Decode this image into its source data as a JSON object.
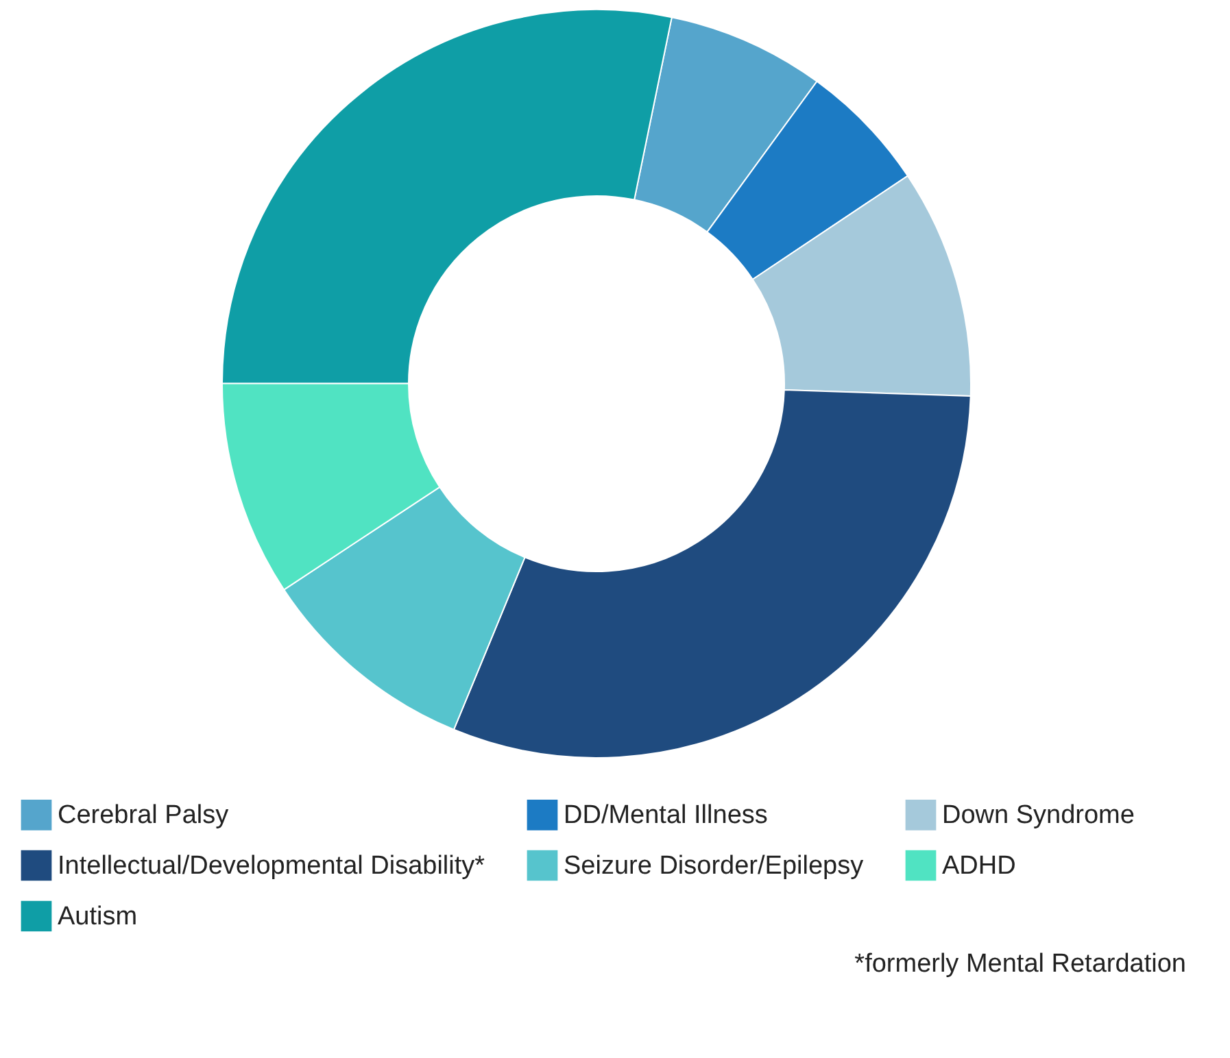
{
  "chart_data": {
    "type": "donut",
    "categories": [
      "Cerebral Palsy",
      "DD/Mental Illness",
      "Down Syndrome",
      "Intellectual/Developmental Disability*",
      "Seizure Disorder/Epilepsy",
      "ADHD",
      "Autism"
    ],
    "values": [
      6.8,
      5.6,
      9.9,
      30.7,
      9.5,
      9.3,
      28.2
    ],
    "colors": [
      "#55a5cc",
      "#1c7bc4",
      "#a5c9db",
      "#1f4b7f",
      "#56c4cd",
      "#50e3c2",
      "#0f9ea6"
    ],
    "legend": "bottom",
    "annotations": [
      "*formerly Mental Retardation"
    ]
  }
}
